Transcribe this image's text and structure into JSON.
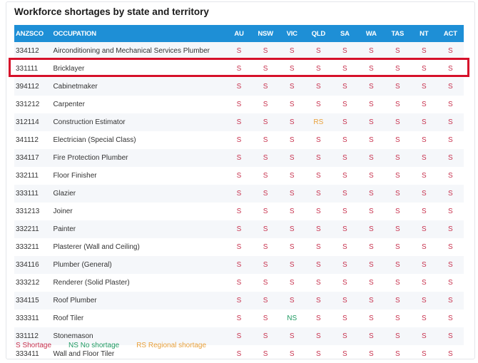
{
  "title": "Workforce shortages by state and territory",
  "columns": [
    "ANZSCO",
    "OCCUPATION",
    "AU",
    "NSW",
    "VIC",
    "QLD",
    "SA",
    "WA",
    "TAS",
    "NT",
    "ACT"
  ],
  "highlighted_row": "Bricklayer",
  "highlight_color": "#d6102a",
  "header_color": "#1e8fd6",
  "rows": [
    {
      "code": "334112",
      "occupation": "Airconditioning and Mechanical Services Plumber",
      "values": [
        "S",
        "S",
        "S",
        "S",
        "S",
        "S",
        "S",
        "S",
        "S"
      ]
    },
    {
      "code": "331111",
      "occupation": "Bricklayer",
      "values": [
        "S",
        "S",
        "S",
        "S",
        "S",
        "S",
        "S",
        "S",
        "S"
      ]
    },
    {
      "code": "394112",
      "occupation": "Cabinetmaker",
      "values": [
        "S",
        "S",
        "S",
        "S",
        "S",
        "S",
        "S",
        "S",
        "S"
      ]
    },
    {
      "code": "331212",
      "occupation": "Carpenter",
      "values": [
        "S",
        "S",
        "S",
        "S",
        "S",
        "S",
        "S",
        "S",
        "S"
      ]
    },
    {
      "code": "312114",
      "occupation": "Construction Estimator",
      "values": [
        "S",
        "S",
        "S",
        "RS",
        "S",
        "S",
        "S",
        "S",
        "S"
      ]
    },
    {
      "code": "341112",
      "occupation": "Electrician (Special Class)",
      "values": [
        "S",
        "S",
        "S",
        "S",
        "S",
        "S",
        "S",
        "S",
        "S"
      ]
    },
    {
      "code": "334117",
      "occupation": "Fire Protection Plumber",
      "values": [
        "S",
        "S",
        "S",
        "S",
        "S",
        "S",
        "S",
        "S",
        "S"
      ]
    },
    {
      "code": "332111",
      "occupation": "Floor Finisher",
      "values": [
        "S",
        "S",
        "S",
        "S",
        "S",
        "S",
        "S",
        "S",
        "S"
      ]
    },
    {
      "code": "333111",
      "occupation": "Glazier",
      "values": [
        "S",
        "S",
        "S",
        "S",
        "S",
        "S",
        "S",
        "S",
        "S"
      ]
    },
    {
      "code": "331213",
      "occupation": "Joiner",
      "values": [
        "S",
        "S",
        "S",
        "S",
        "S",
        "S",
        "S",
        "S",
        "S"
      ]
    },
    {
      "code": "332211",
      "occupation": "Painter",
      "values": [
        "S",
        "S",
        "S",
        "S",
        "S",
        "S",
        "S",
        "S",
        "S"
      ]
    },
    {
      "code": "333211",
      "occupation": "Plasterer (Wall and Ceiling)",
      "values": [
        "S",
        "S",
        "S",
        "S",
        "S",
        "S",
        "S",
        "S",
        "S"
      ]
    },
    {
      "code": "334116",
      "occupation": "Plumber (General)",
      "values": [
        "S",
        "S",
        "S",
        "S",
        "S",
        "S",
        "S",
        "S",
        "S"
      ]
    },
    {
      "code": "333212",
      "occupation": "Renderer (Solid Plaster)",
      "values": [
        "S",
        "S",
        "S",
        "S",
        "S",
        "S",
        "S",
        "S",
        "S"
      ]
    },
    {
      "code": "334115",
      "occupation": "Roof Plumber",
      "values": [
        "S",
        "S",
        "S",
        "S",
        "S",
        "S",
        "S",
        "S",
        "S"
      ]
    },
    {
      "code": "333311",
      "occupation": "Roof Tiler",
      "values": [
        "S",
        "S",
        "NS",
        "S",
        "S",
        "S",
        "S",
        "S",
        "S"
      ]
    },
    {
      "code": "331112",
      "occupation": "Stonemason",
      "values": [
        "S",
        "S",
        "S",
        "S",
        "S",
        "S",
        "S",
        "S",
        "S"
      ]
    },
    {
      "code": "333411",
      "occupation": "Wall and Floor Tiler",
      "values": [
        "S",
        "S",
        "S",
        "S",
        "S",
        "S",
        "S",
        "S",
        "S"
      ]
    }
  ],
  "legend": [
    {
      "key": "S",
      "label": "S Shortage",
      "color": "#c8334f"
    },
    {
      "key": "NS",
      "label": "NS No shortage",
      "color": "#1f9a62"
    },
    {
      "key": "RS",
      "label": "RS Regional shortage",
      "color": "#e8a03a"
    }
  ]
}
